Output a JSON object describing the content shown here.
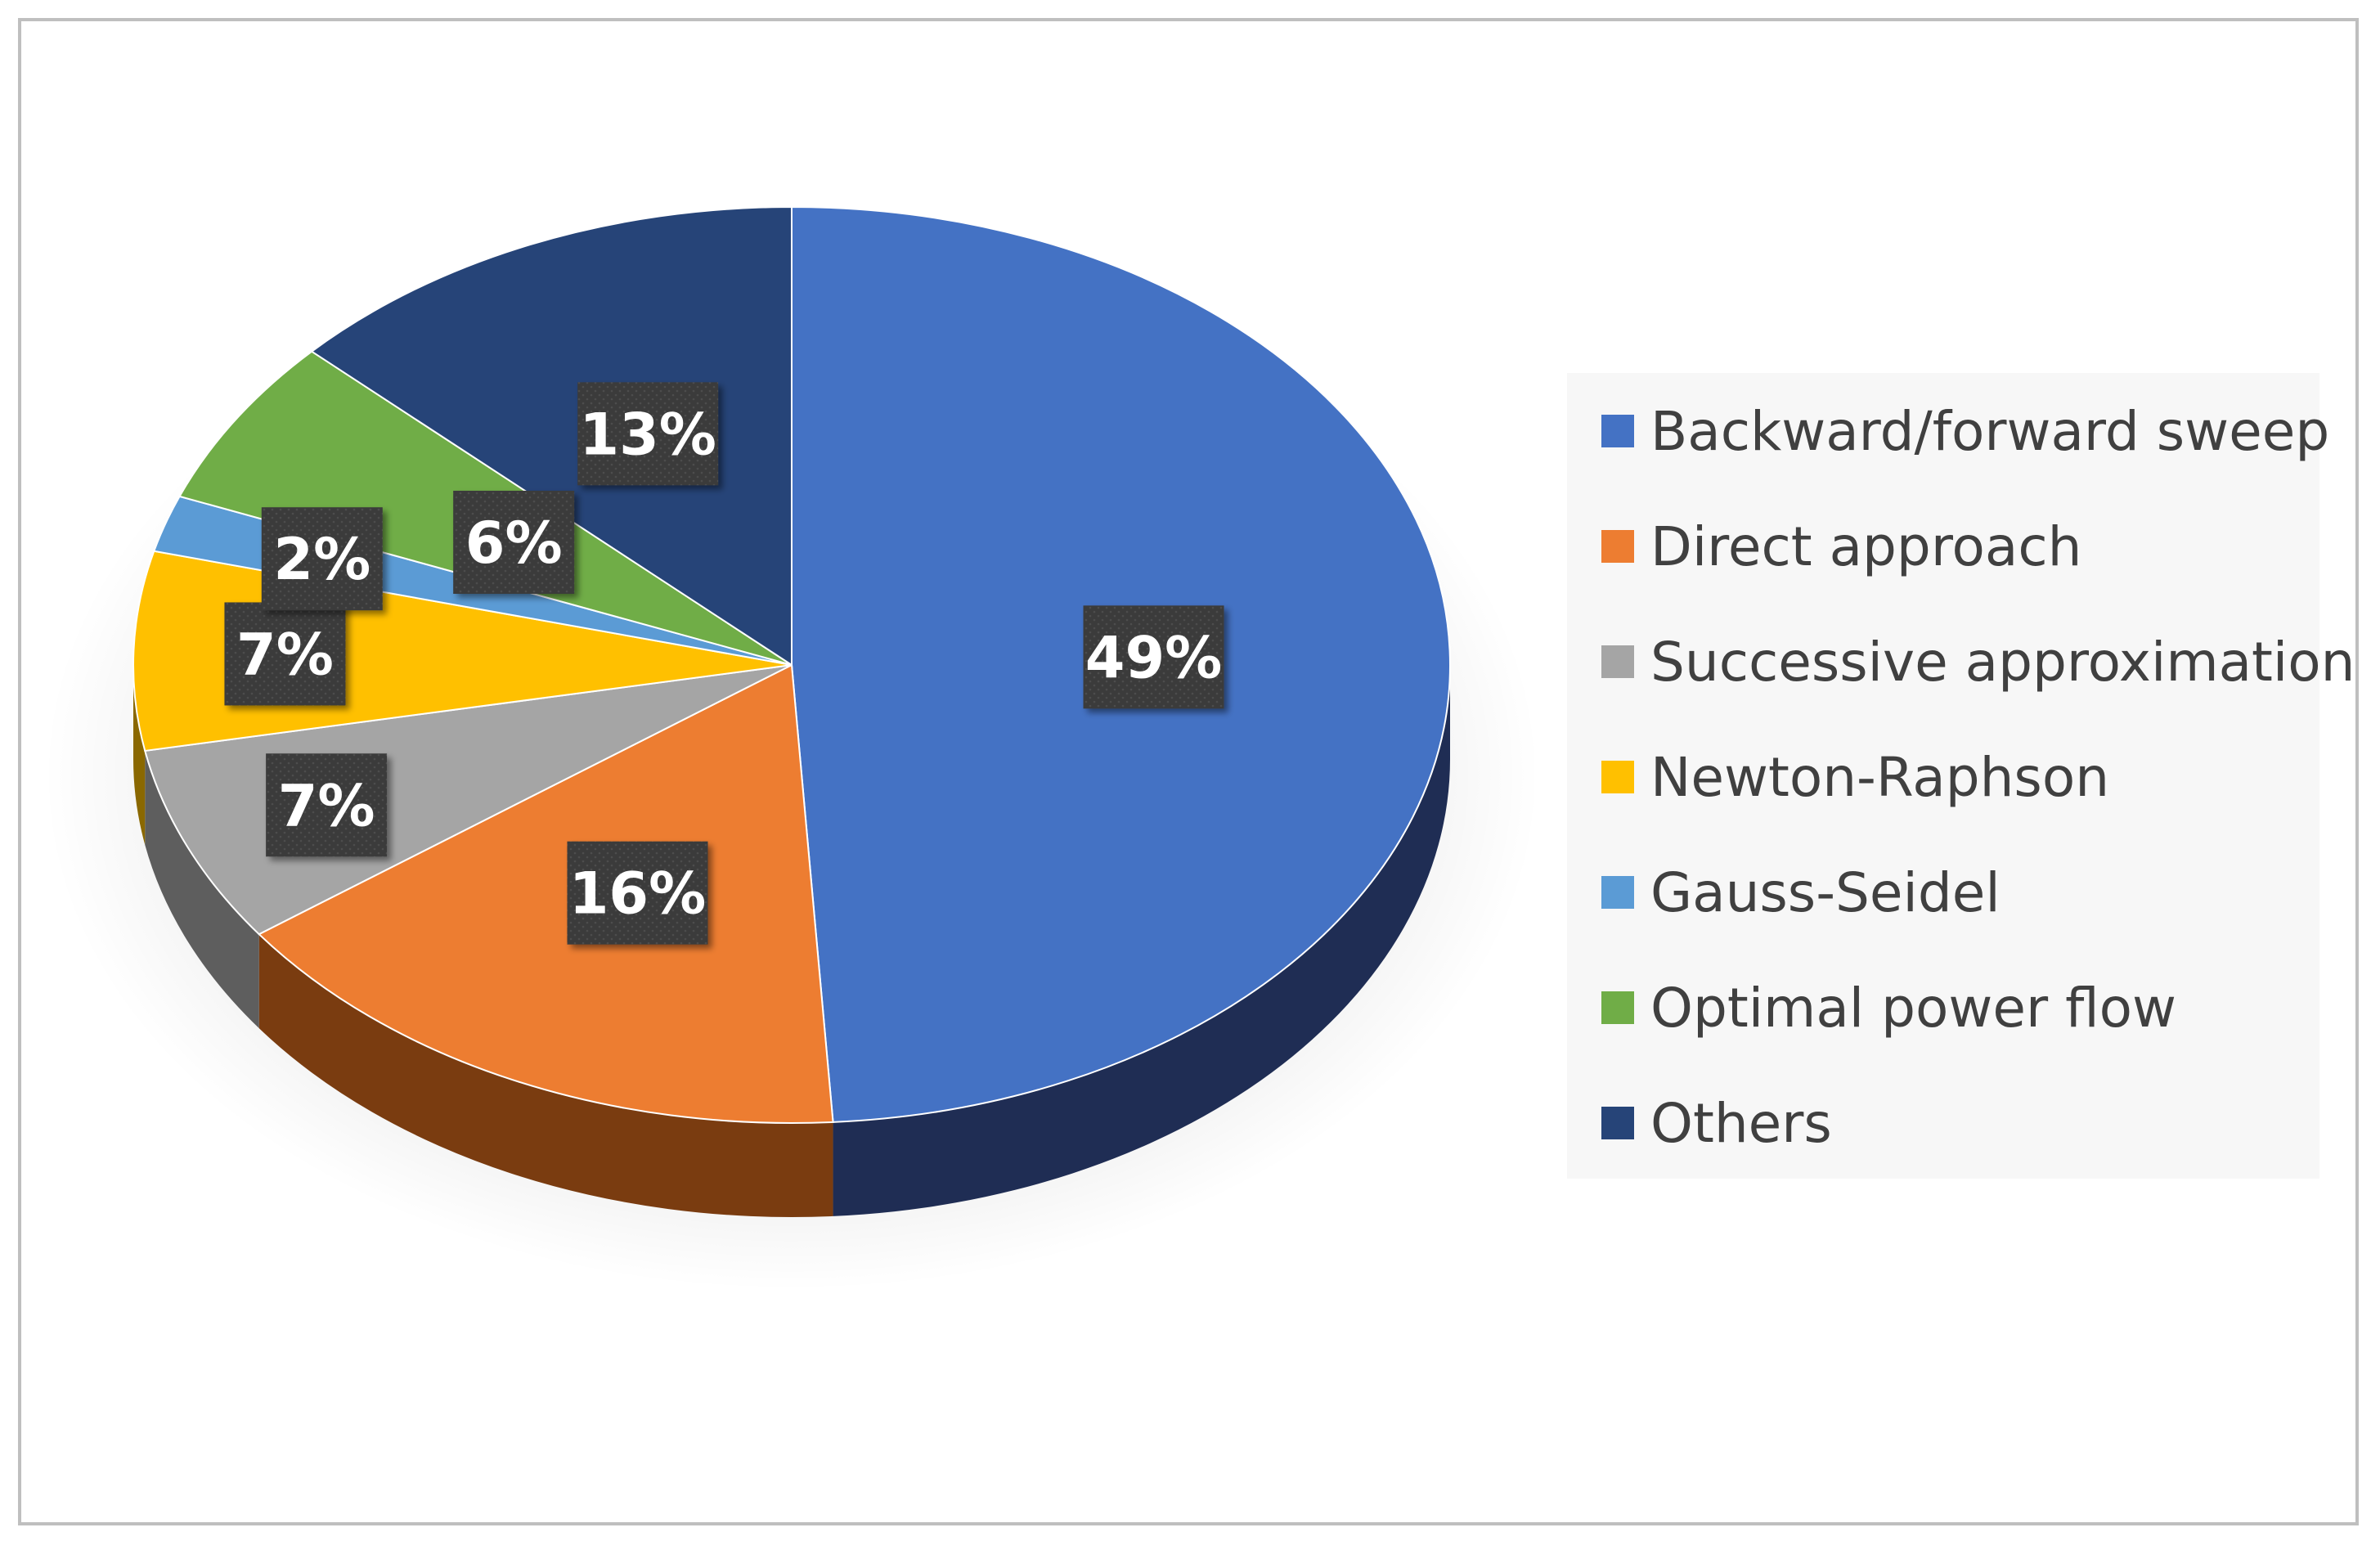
{
  "chart_data": {
    "type": "pie",
    "style": "3d-exploded-none",
    "legend_position": "right",
    "categories": [
      "Backward/forward sweep",
      "Direct approach",
      "Successive approximation",
      "Newton-Raphson",
      "Gauss-Seidel",
      "Optimal power flow",
      "Others"
    ],
    "values": [
      49,
      16,
      7,
      7,
      2,
      6,
      13
    ],
    "labels": [
      "49%",
      "16%",
      "7%",
      "7%",
      "2%",
      "6%",
      "13%"
    ],
    "colors": [
      "#4472C4",
      "#ED7D31",
      "#A5A5A5",
      "#FFC000",
      "#5B9BD5",
      "#70AD47",
      "#264478"
    ],
    "side_colors": [
      "#1F2D54",
      "#7A3C10",
      "#5E5E5E",
      "#8A6800",
      "#2F5F8F",
      "#3B6424",
      "#131F3A"
    ]
  }
}
